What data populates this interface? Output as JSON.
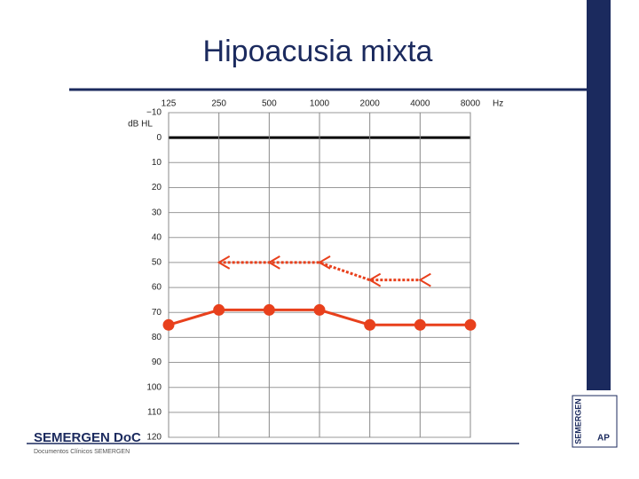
{
  "chart_data": {
    "type": "line",
    "title": "Hipoacusia mixta",
    "categories": [
      "125",
      "250",
      "500",
      "1000",
      "2000",
      "4000",
      "8000"
    ],
    "x_label": "Hz",
    "y_label": "dB HL",
    "ylim": [
      -10,
      120
    ],
    "y_inverted": true,
    "yticks": [
      {
        "value": -10,
        "label": "−10"
      },
      0,
      10,
      20,
      30,
      40,
      50,
      60,
      70,
      80,
      90,
      100,
      110,
      120
    ],
    "grid": true,
    "zero_line": true,
    "series": [
      {
        "color": "#e8401c",
        "linestyle": "dotted",
        "marker": "chevron-left",
        "values": [
          null,
          50,
          50,
          50,
          57,
          57,
          null
        ]
      },
      {
        "color": "#e8401c",
        "linestyle": "solid",
        "marker": "circle",
        "values": [
          75,
          69,
          69,
          69,
          75,
          75,
          75
        ]
      }
    ]
  },
  "footer": {
    "brand": "SEMERGEN DoC",
    "tagline": "Documentos Clínicos SEMERGEN",
    "side_logo": "SEMERGEN",
    "side_badge": "AP"
  }
}
